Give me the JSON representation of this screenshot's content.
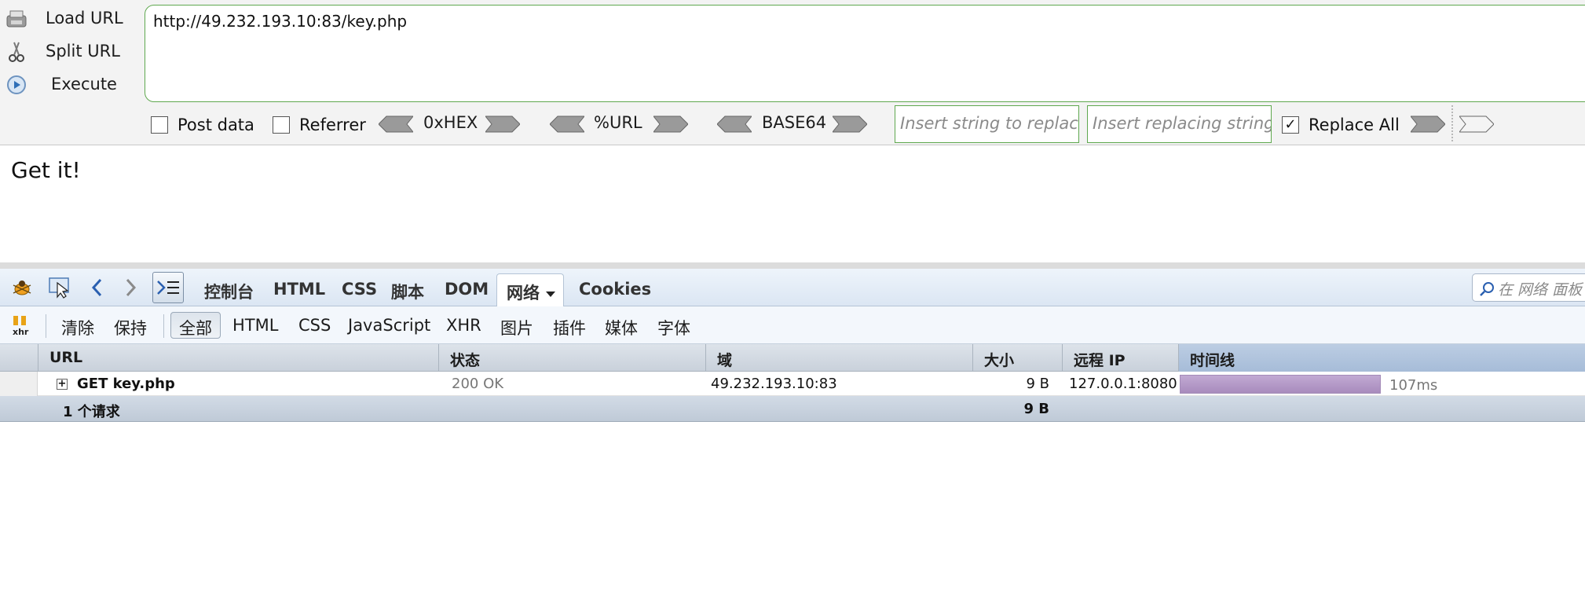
{
  "hackbar": {
    "actions": [
      {
        "label": "Load URL",
        "icon": "load-url-icon"
      },
      {
        "label": "Split URL",
        "icon": "scissors-icon"
      },
      {
        "label": "Execute",
        "icon": "play-icon"
      }
    ],
    "url": "http://49.232.193.10:83/key.php",
    "post_data_label": "Post data",
    "post_data_checked": false,
    "referrer_label": "Referrer",
    "referrer_checked": false,
    "encoders": [
      "0xHEX",
      "%URL",
      "BASE64"
    ],
    "replace_placeholder": "Insert string to replace",
    "replacing_placeholder": "Insert replacing string",
    "replace_all_label": "Replace All",
    "replace_all_checked": true,
    "accent_color": "#5fa84f"
  },
  "page": {
    "body_text": "Get it!"
  },
  "firebug": {
    "tabs": [
      "控制台",
      "HTML",
      "CSS",
      "脚本",
      "DOM",
      "网络",
      "Cookies"
    ],
    "selected_tab": "网络",
    "search_placeholder": "在 网络 面板",
    "filters": {
      "clear": "清除",
      "persist": "保持",
      "types": [
        "全部",
        "HTML",
        "CSS",
        "JavaScript",
        "XHR",
        "图片",
        "插件",
        "媒体",
        "字体"
      ],
      "selected": "全部"
    },
    "net": {
      "columns": [
        "URL",
        "状态",
        "域",
        "大小",
        "远程 IP",
        "时间线"
      ],
      "rows": [
        {
          "url": "GET key.php",
          "status": "200 OK",
          "domain": "49.232.193.10:83",
          "size": "9 B",
          "remote_ip": "127.0.0.1:8080",
          "time": "107ms"
        }
      ],
      "summary": {
        "requests": "1 个请求",
        "size": "9 B"
      },
      "timeline_color": "#b39ac6"
    }
  }
}
